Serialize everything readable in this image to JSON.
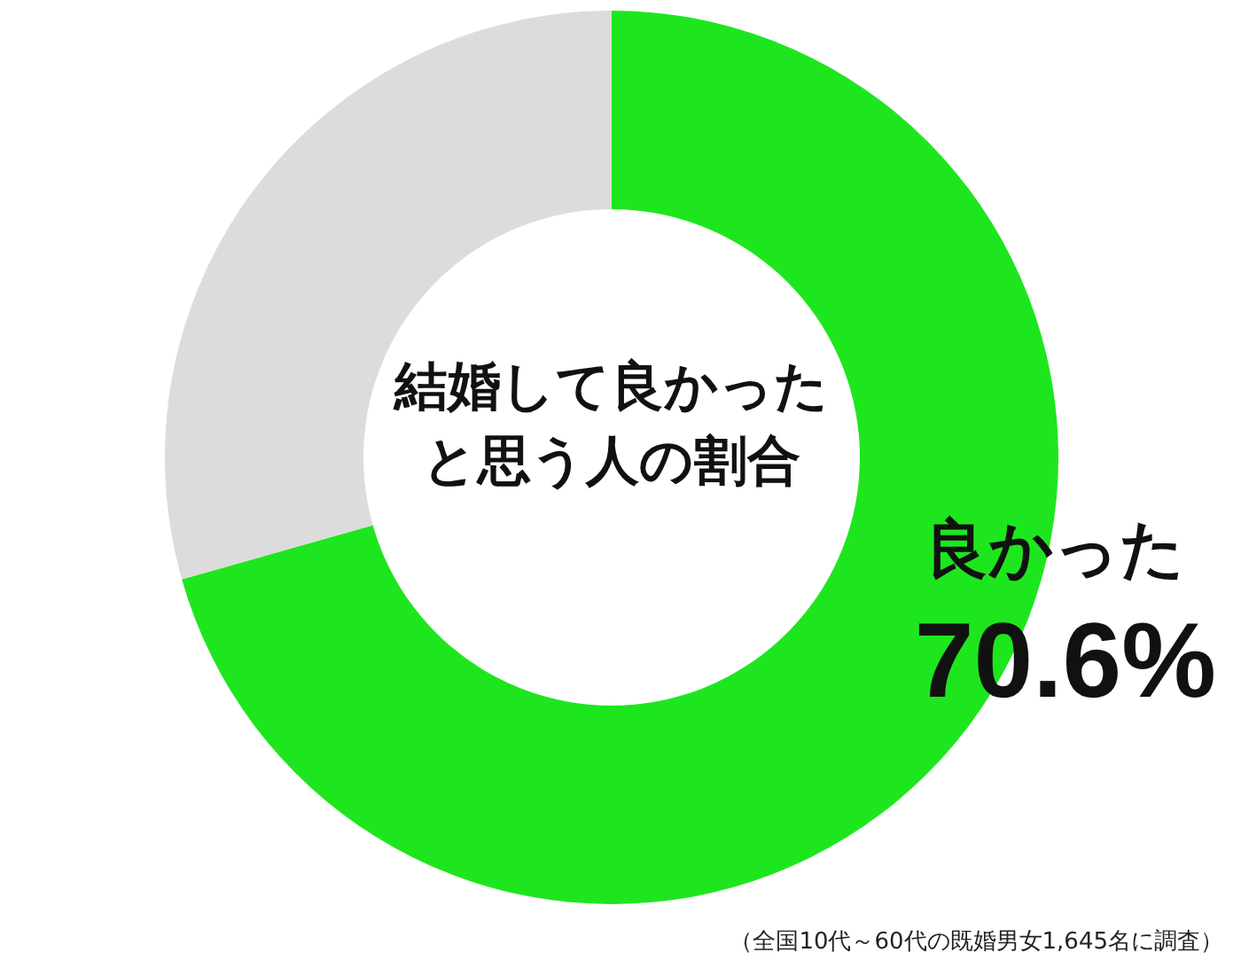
{
  "chart_data": {
    "type": "donut",
    "title": "結婚して良かったと思う人の割合",
    "categories": [
      "良かった",
      null
    ],
    "values": [
      70.6,
      29.4
    ],
    "colors": [
      "#1ee61e",
      "#dcdcdc"
    ],
    "value_labels": [
      "70.6%",
      null
    ],
    "annotations": [
      "（全国10代～60代の既婚男女1,645名に調査）"
    ]
  }
}
